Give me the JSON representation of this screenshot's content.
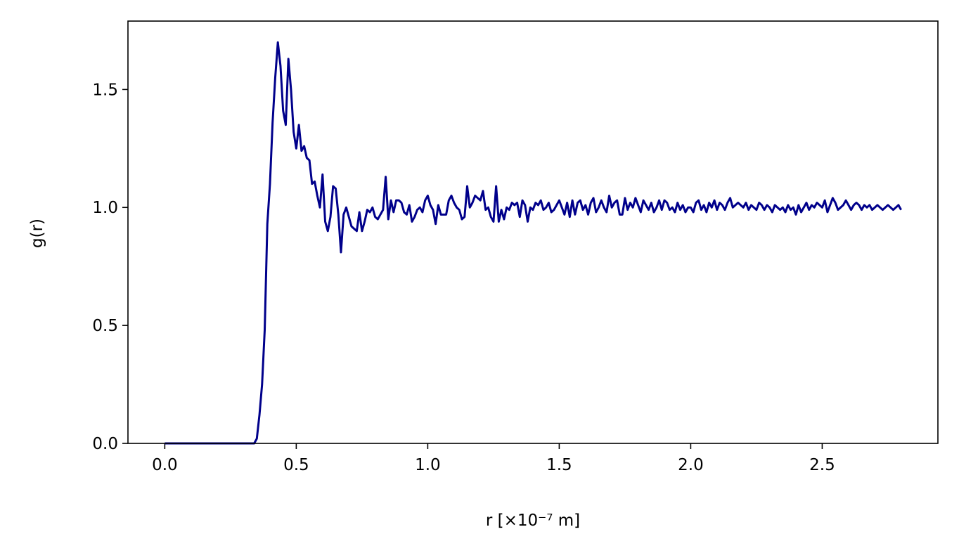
{
  "chart_data": {
    "type": "line",
    "xlabel": "r [×10⁻⁷ m]",
    "ylabel": "g(r)",
    "color": "#00008b",
    "xlim": [
      -0.14,
      2.94
    ],
    "ylim": [
      0,
      1.79
    ],
    "xticks": [
      {
        "value": 0,
        "label": "0.0"
      },
      {
        "value": 0.5,
        "label": "0.5"
      },
      {
        "value": 1,
        "label": "1.0"
      },
      {
        "value": 1.5,
        "label": "1.5"
      },
      {
        "value": 2,
        "label": "2.0"
      },
      {
        "value": 2.5,
        "label": "2.5"
      }
    ],
    "yticks": [
      {
        "value": 0,
        "label": "0.0"
      },
      {
        "value": 0.5,
        "label": "0.5"
      },
      {
        "value": 1,
        "label": "1.0"
      },
      {
        "value": 1.5,
        "label": "1.5"
      }
    ],
    "x": [
      0,
      0.01,
      0.02,
      0.03,
      0.04,
      0.05,
      0.06,
      0.07,
      0.08,
      0.09,
      0.1,
      0.11,
      0.12,
      0.13,
      0.14,
      0.15,
      0.16,
      0.17,
      0.18,
      0.19,
      0.2,
      0.21,
      0.22,
      0.23,
      0.24,
      0.25,
      0.26,
      0.27,
      0.28,
      0.29,
      0.3,
      0.31,
      0.32,
      0.33,
      0.34,
      0.35,
      0.36,
      0.37,
      0.38,
      0.39,
      0.4,
      0.41,
      0.42,
      0.43,
      0.44,
      0.45,
      0.46,
      0.47,
      0.48,
      0.49,
      0.5,
      0.51,
      0.52,
      0.53,
      0.54,
      0.55,
      0.56,
      0.57,
      0.58,
      0.59,
      0.6,
      0.61,
      0.62,
      0.63,
      0.64,
      0.65,
      0.66,
      0.67,
      0.68,
      0.69,
      0.7,
      0.71,
      0.72,
      0.73,
      0.74,
      0.75,
      0.76,
      0.77,
      0.78,
      0.79,
      0.8,
      0.81,
      0.82,
      0.83,
      0.84,
      0.85,
      0.86,
      0.87,
      0.88,
      0.89,
      0.9,
      0.91,
      0.92,
      0.93,
      0.94,
      0.95,
      0.96,
      0.97,
      0.98,
      0.99,
      1,
      1.01,
      1.02,
      1.03,
      1.04,
      1.05,
      1.06,
      1.07,
      1.08,
      1.09,
      1.1,
      1.11,
      1.12,
      1.13,
      1.14,
      1.15,
      1.16,
      1.17,
      1.18,
      1.19,
      1.2,
      1.21,
      1.22,
      1.23,
      1.24,
      1.25,
      1.26,
      1.27,
      1.28,
      1.29,
      1.3,
      1.31,
      1.32,
      1.33,
      1.34,
      1.35,
      1.36,
      1.37,
      1.38,
      1.39,
      1.4,
      1.41,
      1.42,
      1.43,
      1.44,
      1.45,
      1.46,
      1.47,
      1.48,
      1.49,
      1.5,
      1.51,
      1.52,
      1.53,
      1.54,
      1.55,
      1.56,
      1.57,
      1.58,
      1.59,
      1.6,
      1.61,
      1.62,
      1.63,
      1.64,
      1.65,
      1.66,
      1.67,
      1.68,
      1.69,
      1.7,
      1.71,
      1.72,
      1.73,
      1.74,
      1.75,
      1.76,
      1.77,
      1.78,
      1.79,
      1.8,
      1.81,
      1.82,
      1.83,
      1.84,
      1.85,
      1.86,
      1.87,
      1.88,
      1.89,
      1.9,
      1.91,
      1.92,
      1.93,
      1.94,
      1.95,
      1.96,
      1.97,
      1.98,
      1.99,
      2,
      2.01,
      2.02,
      2.03,
      2.04,
      2.05,
      2.06,
      2.07,
      2.08,
      2.09,
      2.1,
      2.11,
      2.12,
      2.13,
      2.14,
      2.15,
      2.16,
      2.17,
      2.18,
      2.19,
      2.2,
      2.21,
      2.22,
      2.23,
      2.24,
      2.25,
      2.26,
      2.27,
      2.28,
      2.29,
      2.3,
      2.31,
      2.32,
      2.33,
      2.34,
      2.35,
      2.36,
      2.37,
      2.38,
      2.39,
      2.4,
      2.41,
      2.42,
      2.43,
      2.44,
      2.45,
      2.46,
      2.47,
      2.48,
      2.49,
      2.5,
      2.51,
      2.52,
      2.53,
      2.54,
      2.55,
      2.56,
      2.57,
      2.58,
      2.59,
      2.6,
      2.61,
      2.62,
      2.63,
      2.64,
      2.65,
      2.66,
      2.67,
      2.68,
      2.69,
      2.7,
      2.71,
      2.72,
      2.73,
      2.74,
      2.75,
      2.76,
      2.77,
      2.78,
      2.79,
      2.8
    ],
    "values": [
      0,
      0,
      0,
      0,
      0,
      0,
      0,
      0,
      0,
      0,
      0,
      0,
      0,
      0,
      0,
      0,
      0,
      0,
      0,
      0,
      0,
      0,
      0,
      0,
      0,
      0,
      0,
      0,
      0,
      0,
      0,
      0,
      0,
      0,
      0,
      0.02,
      0.12,
      0.25,
      0.48,
      0.93,
      1.1,
      1.36,
      1.55,
      1.7,
      1.6,
      1.41,
      1.35,
      1.63,
      1.5,
      1.32,
      1.25,
      1.35,
      1.24,
      1.26,
      1.21,
      1.2,
      1.1,
      1.11,
      1.05,
      1.0,
      1.14,
      0.94,
      0.9,
      0.96,
      1.09,
      1.08,
      0.97,
      0.81,
      0.97,
      1.0,
      0.96,
      0.92,
      0.91,
      0.9,
      0.98,
      0.9,
      0.94,
      0.99,
      0.98,
      1.0,
      0.96,
      0.95,
      0.97,
      0.99,
      1.13,
      0.95,
      1.03,
      0.98,
      1.03,
      1.03,
      1.02,
      0.98,
      0.97,
      1.01,
      0.94,
      0.96,
      0.99,
      1.0,
      0.98,
      1.03,
      1.05,
      1.01,
      0.99,
      0.93,
      1.01,
      0.97,
      0.97,
      0.97,
      1.03,
      1.05,
      1.02,
      1.0,
      0.99,
      0.95,
      0.96,
      1.09,
      1.0,
      1.02,
      1.05,
      1.04,
      1.03,
      1.07,
      0.99,
      1.0,
      0.96,
      0.94,
      1.09,
      0.94,
      0.99,
      0.95,
      1.0,
      0.99,
      1.02,
      1.01,
      1.02,
      0.96,
      1.03,
      1.01,
      0.94,
      1.0,
      0.99,
      1.02,
      1.01,
      1.03,
      0.99,
      1.0,
      1.02,
      0.98,
      0.99,
      1.01,
      1.03,
      1.0,
      0.97,
      1.02,
      0.96,
      1.03,
      0.97,
      1.02,
      1.03,
      0.99,
      1.01,
      0.97,
      1.02,
      1.04,
      0.98,
      1.0,
      1.03,
      1.0,
      0.98,
      1.05,
      1.0,
      1.02,
      1.03,
      0.97,
      0.97,
      1.04,
      0.99,
      1.02,
      1.0,
      1.04,
      1.01,
      0.98,
      1.03,
      1.01,
      0.99,
      1.02,
      0.98,
      1.0,
      1.03,
      0.99,
      1.03,
      1.02,
      0.99,
      1.0,
      0.98,
      1.02,
      0.99,
      1.01,
      0.98,
      1.0,
      1.0,
      0.98,
      1.02,
      1.03,
      0.99,
      1.01,
      0.98,
      1.02,
      1.0,
      1.03,
      0.99,
      1.02,
      1.01,
      0.99,
      1.02,
      1.04,
      1.0,
      1.01,
      1.02,
      1.01,
      1.0,
      1.02,
      0.99,
      1.01,
      1.0,
      0.99,
      1.02,
      1.01,
      0.99,
      1.01,
      1.0,
      0.98,
      1.01,
      1.0,
      0.99,
      1.0,
      0.98,
      1.01,
      0.99,
      1.0,
      0.97,
      1.01,
      0.98,
      1.0,
      1.02,
      0.99,
      1.01,
      1.0,
      1.02,
      1.01,
      1.0,
      1.03,
      0.98,
      1.01,
      1.04,
      1.02,
      0.99,
      1.0,
      1.01,
      1.03,
      1.01,
      0.99,
      1.01,
      1.02,
      1.01,
      0.99,
      1.01,
      1.0,
      1.01,
      0.99,
      1.0,
      1.01,
      1.0,
      0.99,
      1.0,
      1.01,
      1.0,
      0.99,
      1.0,
      1.01,
      0.99
    ]
  }
}
